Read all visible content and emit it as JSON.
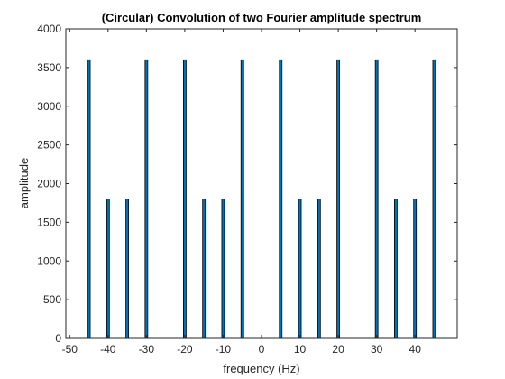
{
  "chart_data": {
    "type": "bar",
    "title": "(Circular) Convolution of two Fourier amplitude spectrum",
    "xlabel": "frequency (Hz)",
    "ylabel": "amplitude",
    "xlim": [
      -51,
      51
    ],
    "ylim": [
      0,
      4000
    ],
    "xticks": [
      -50,
      -40,
      -30,
      -20,
      -10,
      0,
      10,
      20,
      30,
      40
    ],
    "yticks": [
      0,
      500,
      1000,
      1500,
      2000,
      2500,
      3000,
      3500,
      4000
    ],
    "grid": false,
    "bar_color": "#0072BD",
    "bar_edge_color": "#000000",
    "series": [
      {
        "x": [
          -45,
          -40,
          -35,
          -30,
          -20,
          -15,
          -10,
          -5,
          5,
          10,
          15,
          20,
          30,
          35,
          40,
          45
        ],
        "values": [
          3600,
          1800,
          1800,
          3600,
          3600,
          1800,
          1800,
          3600,
          3600,
          1800,
          1800,
          3600,
          3600,
          1800,
          1800,
          3600
        ]
      }
    ]
  }
}
